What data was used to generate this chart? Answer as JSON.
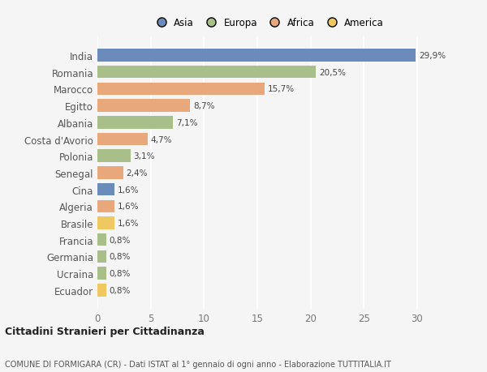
{
  "countries": [
    "India",
    "Romania",
    "Marocco",
    "Egitto",
    "Albania",
    "Costa d'Avorio",
    "Polonia",
    "Senegal",
    "Cina",
    "Algeria",
    "Brasile",
    "Francia",
    "Germania",
    "Ucraina",
    "Ecuador"
  ],
  "values": [
    29.9,
    20.5,
    15.7,
    8.7,
    7.1,
    4.7,
    3.1,
    2.4,
    1.6,
    1.6,
    1.6,
    0.8,
    0.8,
    0.8,
    0.8
  ],
  "labels": [
    "29,9%",
    "20,5%",
    "15,7%",
    "8,7%",
    "7,1%",
    "4,7%",
    "3,1%",
    "2,4%",
    "1,6%",
    "1,6%",
    "1,6%",
    "0,8%",
    "0,8%",
    "0,8%",
    "0,8%"
  ],
  "colors": [
    "#6b8cba",
    "#a8bf8a",
    "#e8a87c",
    "#e8a87c",
    "#a8bf8a",
    "#e8a87c",
    "#a8bf8a",
    "#e8a87c",
    "#6b8cba",
    "#e8a87c",
    "#f0c862",
    "#a8bf8a",
    "#a8bf8a",
    "#a8bf8a",
    "#f0c862"
  ],
  "continent_colors": {
    "Asia": "#6b8cba",
    "Europa": "#a8bf8a",
    "Africa": "#e8a87c",
    "America": "#f0c862"
  },
  "legend_labels": [
    "Asia",
    "Europa",
    "Africa",
    "America"
  ],
  "title_bold": "Cittadini Stranieri per Cittadinanza",
  "subtitle": "COMUNE DI FORMIGARA (CR) - Dati ISTAT al 1° gennaio di ogni anno - Elaborazione TUTTITALIA.IT",
  "xlim": [
    0,
    32
  ],
  "xticks": [
    0,
    5,
    10,
    15,
    20,
    25,
    30
  ],
  "bg_color": "#f5f5f5",
  "grid_color": "#ffffff",
  "bar_height": 0.75
}
